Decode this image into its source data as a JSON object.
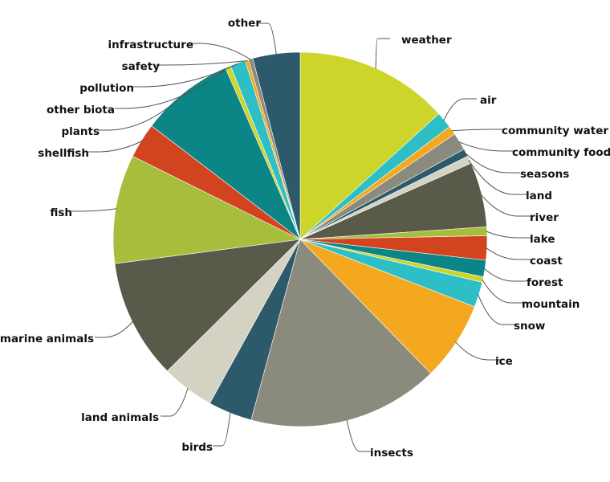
{
  "chart_data": {
    "type": "pie",
    "title": "",
    "slices": [
      {
        "label": "weather",
        "value": 14.0,
        "color": "#cdd52a"
      },
      {
        "label": "air",
        "value": 1.5,
        "color": "#2ebfc6"
      },
      {
        "label": "community water",
        "value": 0.8,
        "color": "#f3a81f"
      },
      {
        "label": "community food",
        "value": 1.6,
        "color": "#8a8b7c"
      },
      {
        "label": "seasons",
        "value": 0.7,
        "color": "#2c5a6a"
      },
      {
        "label": "land",
        "value": 0.7,
        "color": "#d4d2c2"
      },
      {
        "label": "river",
        "value": 5.9,
        "color": "#5a5a4a"
      },
      {
        "label": "lake",
        "value": 0.8,
        "color": "#a7be3c"
      },
      {
        "label": "coast",
        "value": 2.2,
        "color": "#d1441f"
      },
      {
        "label": "forest",
        "value": 1.5,
        "color": "#0b8585"
      },
      {
        "label": "mountain",
        "value": 0.5,
        "color": "#cdd52a"
      },
      {
        "label": "snow",
        "value": 2.3,
        "color": "#2ebfc6"
      },
      {
        "label": "ice",
        "value": 7.2,
        "color": "#f3a81f"
      },
      {
        "label": "insects",
        "value": 17.4,
        "color": "#8a8b7c"
      },
      {
        "label": "birds",
        "value": 4.0,
        "color": "#2c5a6a"
      },
      {
        "label": "land animals",
        "value": 4.8,
        "color": "#d4d2c2"
      },
      {
        "label": "marine animals",
        "value": 10.9,
        "color": "#5a5a4a"
      },
      {
        "label": "fish",
        "value": 9.9,
        "color": "#a7be3c"
      },
      {
        "label": "shellfish",
        "value": 3.2,
        "color": "#d1441f"
      },
      {
        "label": "plants",
        "value": 8.5,
        "color": "#0b8585"
      },
      {
        "label": "other biota",
        "value": 0.5,
        "color": "#cdd52a"
      },
      {
        "label": "pollution",
        "value": 1.4,
        "color": "#2ebfc6"
      },
      {
        "label": "safety",
        "value": 0.3,
        "color": "#f3a81f"
      },
      {
        "label": "infrastructure",
        "value": 0.4,
        "color": "#8a8b7c"
      },
      {
        "label": "other",
        "value": 4.3,
        "color": "#2c5a6a"
      }
    ],
    "legend": "none",
    "label_style": "external labels with leader lines"
  }
}
